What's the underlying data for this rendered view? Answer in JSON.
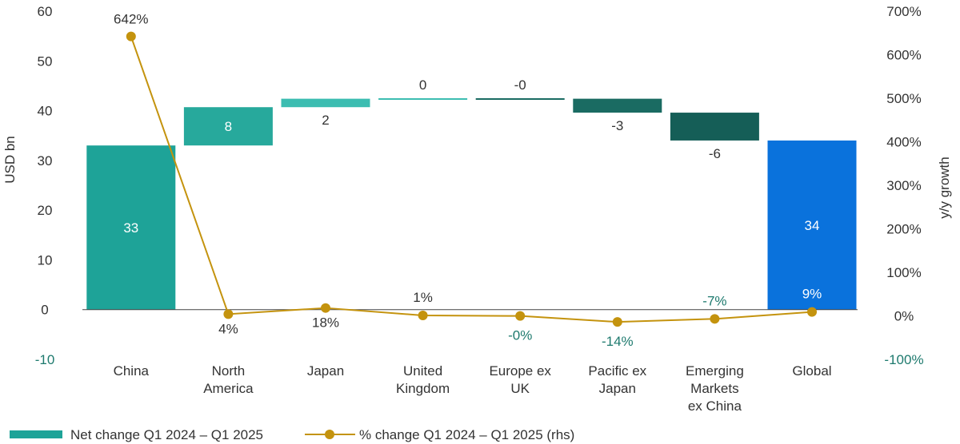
{
  "chart_data": {
    "type": "bar",
    "subtype": "waterfall-with-line",
    "categories": [
      [
        "China"
      ],
      [
        "North",
        "America"
      ],
      [
        "Japan"
      ],
      [
        "United",
        "Kingdom"
      ],
      [
        "Europe ex",
        "UK"
      ],
      [
        "Pacific ex",
        "Japan"
      ],
      [
        "Emerging",
        "Markets",
        "ex China"
      ],
      [
        "Global"
      ]
    ],
    "series": [
      {
        "name": "Net change Q1 2024 – Q1 2025",
        "axis": "left",
        "kind": "waterfall",
        "values": [
          33,
          7.7,
          1.7,
          0.1,
          -0.1,
          -2.8,
          -5.6,
          34
        ],
        "labels": [
          "33",
          "8",
          "2",
          "0",
          "-0",
          "-3",
          "-6",
          "34"
        ],
        "bar_roles": [
          "total",
          "delta",
          "delta",
          "delta",
          "delta",
          "delta",
          "delta",
          "total"
        ]
      },
      {
        "name": "% change Q1 2024 – Q1 2025 (rhs)",
        "axis": "right",
        "kind": "line",
        "values": [
          642,
          4,
          18,
          1,
          -0.3,
          -14,
          -7,
          9
        ],
        "labels": [
          "642%",
          "4%",
          "18%",
          "1%",
          "-0%",
          "-14%",
          "-7%",
          "9%"
        ]
      }
    ],
    "left_axis": {
      "title": "USD bn",
      "range": [
        -10,
        60
      ],
      "ticks": [
        "-10",
        "0",
        "10",
        "20",
        "30",
        "40",
        "50",
        "60"
      ]
    },
    "right_axis": {
      "title": "y/y growth",
      "range": [
        -100,
        700
      ],
      "ticks": [
        "-100%",
        "0%",
        "100%",
        "200%",
        "300%",
        "400%",
        "500%",
        "600%",
        "700%"
      ]
    },
    "colors": {
      "total_teal": "#1ea398",
      "increase": "#27a99c",
      "increase_light": "#3cbdb1",
      "decrease": "#1a6b62",
      "decrease_dark": "#155e57",
      "global": "#0a72dc",
      "line": "#c4930e",
      "negative_text": "#1e7a6e",
      "text": "#333333"
    },
    "grid": false,
    "legend_position": "bottom-left"
  }
}
